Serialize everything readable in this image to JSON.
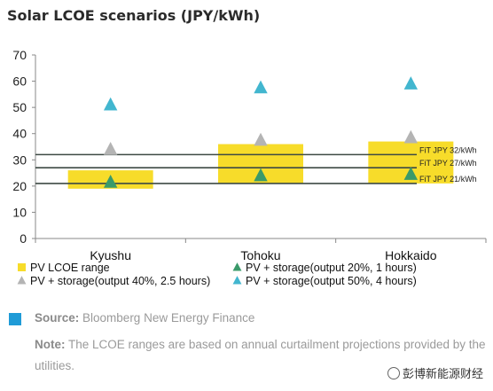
{
  "header": {
    "title": "Solar LCOE scenarios (JPY/kWh)"
  },
  "chart_data": {
    "type": "bar",
    "title": "Solar LCOE scenarios (JPY/kWh)",
    "categories": [
      "Kyushu",
      "Tohoku",
      "Hokkaido"
    ],
    "ylim": [
      0,
      70
    ],
    "yticks": [
      0,
      10,
      20,
      30,
      40,
      50,
      60,
      70
    ],
    "grid": false,
    "range_series": {
      "name": "PV LCOE range",
      "color": "#f7dc2a",
      "ranges": [
        [
          19,
          26
        ],
        [
          21,
          36
        ],
        [
          21,
          37
        ]
      ]
    },
    "series": [
      {
        "name": "PV + storage(output 20%, 1 hours)",
        "marker": "triangle",
        "color": "#3a9a6a",
        "values": [
          21.5,
          24,
          24.5
        ]
      },
      {
        "name": "PV + storage(output 40%, 2.5 hours)",
        "marker": "triangle",
        "color": "#b4b4b4",
        "values": [
          34,
          37.5,
          38.5
        ]
      },
      {
        "name": "PV + storage(output 50%, 4 hours)",
        "marker": "triangle",
        "color": "#42b6cf",
        "values": [
          51,
          57.5,
          59
        ]
      }
    ],
    "reference_lines": [
      {
        "label": "FiT JPY 32/kWh",
        "value": 32
      },
      {
        "label": "FiT JPY 27/kWh",
        "value": 27
      },
      {
        "label": "FiT JPY 21/kWh",
        "value": 21
      }
    ],
    "legend_position": "bottom",
    "legend": [
      {
        "label": "PV LCOE range",
        "swatch": "square",
        "color": "#f7dc2a"
      },
      {
        "label": "PV + storage(output 20%, 1 hours)",
        "swatch": "triangle",
        "color": "#3a9a6a"
      },
      {
        "label": "PV + storage(output 40%, 2.5 hours)",
        "swatch": "triangle",
        "color": "#b4b4b4"
      },
      {
        "label": "PV + storage(output 50%, 4 hours)",
        "swatch": "triangle",
        "color": "#42b6cf"
      }
    ]
  },
  "footer": {
    "source_label": "Source:",
    "source_text": "Bloomberg New Energy Finance",
    "note_label": "Note:",
    "note_text": "The LCOE ranges are based on annual curtailment projections provided by the utilities.",
    "accent_color": "#1f9bd7"
  },
  "watermark": {
    "text": "彭博新能源财经"
  }
}
